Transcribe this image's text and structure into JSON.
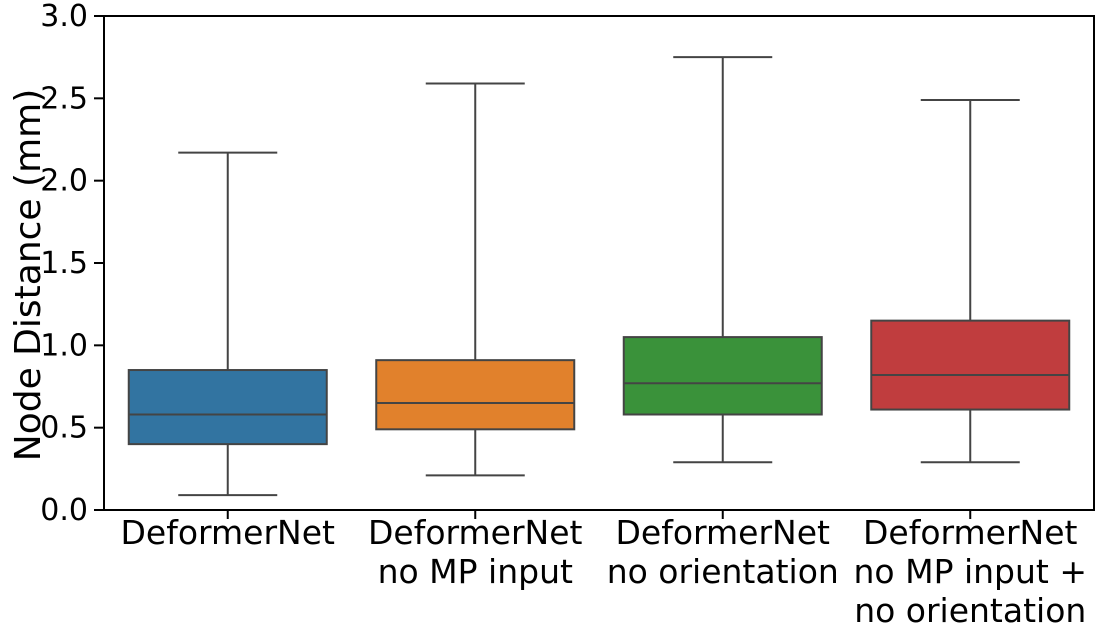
{
  "figure": {
    "background": "#ffffff"
  },
  "chart_data": {
    "type": "boxplot",
    "title": "",
    "xlabel": "",
    "ylabel": "Node Distance (mm)",
    "ylim": [
      0.0,
      3.0
    ],
    "yticks": [
      0.0,
      0.5,
      1.0,
      1.5,
      2.0,
      2.5,
      3.0
    ],
    "ytick_labels": [
      "0.0",
      "0.5",
      "1.0",
      "1.5",
      "2.0",
      "2.5",
      "3.0"
    ],
    "grid": false,
    "legend": null,
    "categories": [
      [
        "DeformerNet"
      ],
      [
        "DeformerNet",
        "no MP input"
      ],
      [
        "DeformerNet",
        "no orientation"
      ],
      [
        "DeformerNet",
        "no MP input +",
        "no orientation"
      ]
    ],
    "series": [
      {
        "name": "DeformerNet",
        "color": "#3274A1",
        "whisker_low": 0.09,
        "q1": 0.4,
        "median": 0.58,
        "q3": 0.85,
        "whisker_high": 2.17
      },
      {
        "name": "DeformerNet no MP input",
        "color": "#E1812C",
        "whisker_low": 0.21,
        "q1": 0.49,
        "median": 0.65,
        "q3": 0.91,
        "whisker_high": 2.59
      },
      {
        "name": "DeformerNet no orientation",
        "color": "#3A923A",
        "whisker_low": 0.29,
        "q1": 0.58,
        "median": 0.77,
        "q3": 1.05,
        "whisker_high": 2.75
      },
      {
        "name": "DeformerNet no MP input + no orientation",
        "color": "#C03D3E",
        "whisker_low": 0.29,
        "q1": 0.61,
        "median": 0.82,
        "q3": 1.15,
        "whisker_high": 2.49
      }
    ],
    "colors": {
      "spine": "#000000",
      "box_edge": "#444444",
      "tick_label": "#000000"
    }
  }
}
